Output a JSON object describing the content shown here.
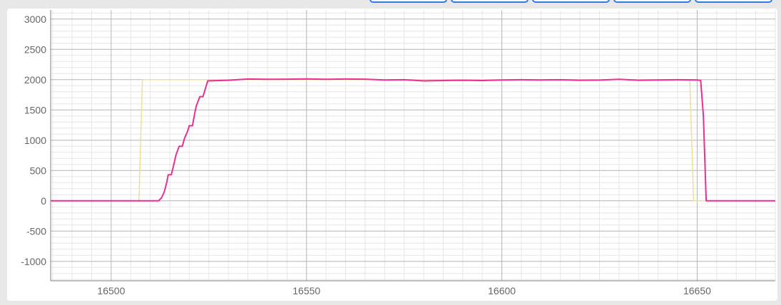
{
  "tabs": [
    {
      "id": "tab-1"
    },
    {
      "id": "tab-2"
    },
    {
      "id": "tab-3"
    },
    {
      "id": "tab-4"
    },
    {
      "id": "tab-5"
    }
  ],
  "colors": {
    "setpoint": "#ecdf9a",
    "actual": "#ec2d92",
    "major_grid": "#b4b4b4",
    "minor_grid": "#e6e6e6",
    "axis": "#808080"
  },
  "chart_data": {
    "type": "line",
    "title": "",
    "xlabel": "",
    "ylabel": "",
    "xlim": [
      16484.5,
      16670
    ],
    "ylim": [
      -1320,
      3150
    ],
    "x_ticks": [
      16500,
      16550,
      16600,
      16650
    ],
    "y_ticks": [
      -1000,
      -500,
      0,
      500,
      1000,
      1500,
      2000,
      2500,
      3000
    ],
    "x_minor_step": 5,
    "y_minor_step": 100,
    "grid": true,
    "legend": "none",
    "series": [
      {
        "color": "#ecdf9a",
        "points": [
          [
            16484.5,
            0
          ],
          [
            16507.1,
            0
          ],
          [
            16508.0,
            2000
          ],
          [
            16648.1,
            2000
          ],
          [
            16649.1,
            0
          ],
          [
            16670,
            0
          ]
        ]
      },
      {
        "color": "#ec2d92",
        "points": [
          [
            16484.5,
            0
          ],
          [
            16512.1,
            0
          ],
          [
            16512.9,
            50
          ],
          [
            16513.6,
            150
          ],
          [
            16514.2,
            300
          ],
          [
            16514.6,
            430
          ],
          [
            16515.4,
            430
          ],
          [
            16516.1,
            620
          ],
          [
            16516.6,
            760
          ],
          [
            16517.4,
            900
          ],
          [
            16518.2,
            900
          ],
          [
            16518.8,
            1040
          ],
          [
            16519.5,
            1140
          ],
          [
            16520.0,
            1240
          ],
          [
            16520.8,
            1240
          ],
          [
            16521.4,
            1450
          ],
          [
            16521.8,
            1570
          ],
          [
            16522.7,
            1720
          ],
          [
            16523.5,
            1720
          ],
          [
            16524.1,
            1850
          ],
          [
            16524.7,
            1980
          ],
          [
            16530,
            1990
          ],
          [
            16535,
            2010
          ],
          [
            16540,
            2005
          ],
          [
            16545,
            2008
          ],
          [
            16550,
            2012
          ],
          [
            16555,
            2005
          ],
          [
            16560,
            2010
          ],
          [
            16565,
            2008
          ],
          [
            16570,
            1995
          ],
          [
            16575,
            1998
          ],
          [
            16580,
            1980
          ],
          [
            16585,
            1985
          ],
          [
            16590,
            1990
          ],
          [
            16595,
            1985
          ],
          [
            16600,
            1995
          ],
          [
            16605,
            1998
          ],
          [
            16610,
            1995
          ],
          [
            16615,
            1998
          ],
          [
            16620,
            1990
          ],
          [
            16625,
            1992
          ],
          [
            16630,
            2005
          ],
          [
            16635,
            1990
          ],
          [
            16640,
            1995
          ],
          [
            16645,
            1998
          ],
          [
            16650,
            1995
          ],
          [
            16650.9,
            1985
          ],
          [
            16651.6,
            1400
          ],
          [
            16652.3,
            0
          ],
          [
            16670,
            0
          ]
        ]
      }
    ]
  }
}
